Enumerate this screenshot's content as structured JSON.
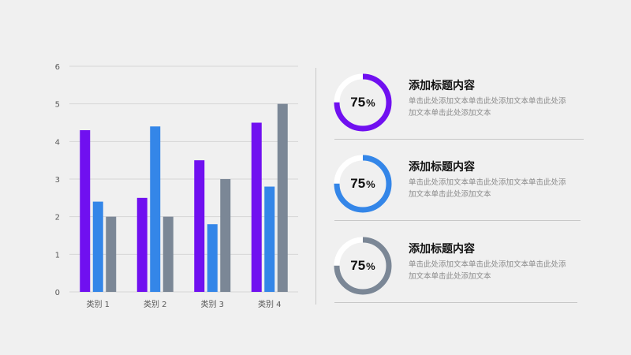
{
  "chart_data": {
    "type": "bar",
    "categories": [
      "类别 1",
      "类别 2",
      "类别 3",
      "类别 4"
    ],
    "series": [
      {
        "values": [
          4.3,
          2.5,
          3.5,
          4.5
        ],
        "color": "#7010f0"
      },
      {
        "values": [
          2.4,
          4.4,
          1.8,
          2.8
        ],
        "color": "#3486e8"
      },
      {
        "values": [
          2.0,
          2.0,
          3.0,
          5.0
        ],
        "color": "#7b8796"
      }
    ],
    "ylim": [
      0,
      6
    ],
    "yticks": [
      0,
      1,
      2,
      3,
      4,
      5,
      6
    ],
    "grid": true,
    "title": "",
    "xlabel": "",
    "ylabel": ""
  },
  "cards": [
    {
      "percent": 75,
      "value_label": "75",
      "unit": "%",
      "title": "添加标题内容",
      "desc": "单击此处添加文本单击此处添加文本单击此处添加文本单击此处添加文本",
      "color": "#7010f0"
    },
    {
      "percent": 75,
      "value_label": "75",
      "unit": "%",
      "title": "添加标题内容",
      "desc": "单击此处添加文本单击此处添加文本单击此处添加文本单击此处添加文本",
      "color": "#3486e8"
    },
    {
      "percent": 75,
      "value_label": "75",
      "unit": "%",
      "title": "添加标题内容",
      "desc": "单击此处添加文本单击此处添加文本单击此处添加文本单击此处添加文本",
      "color": "#7b8796"
    }
  ]
}
